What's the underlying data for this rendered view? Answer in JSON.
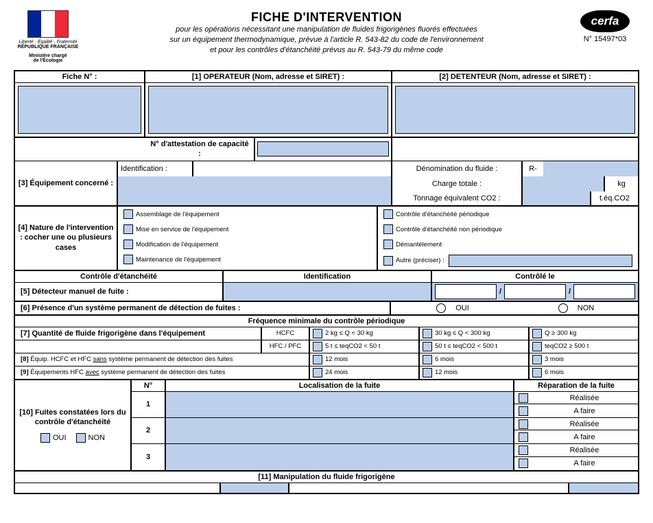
{
  "header": {
    "logo_line1": "Liberté · Égalité · Fraternité",
    "logo_line2": "RÉPUBLIQUE FRANÇAISE",
    "logo_line3": "Ministère chargé",
    "logo_line4": "de l'Écologie",
    "title": "FICHE D'INTERVENTION",
    "sub1": "pour les opérations nécessitant une manipulation de fluides frigorigènes fluorés effectuées",
    "sub2": "sur un équipement thermodynamique, prévue à l'article R. 543-82 du code de l'environnement",
    "sub3": "et pour les contrôles d'étanchéité prévus au R. 543-79 du même code",
    "cerfa": "cerfa",
    "cerfa_no": "N° 15497*03"
  },
  "s1": {
    "fiche_no": "Fiche N° :",
    "operateur": "[1] OPERATEUR (Nom, adresse et SIRET) :",
    "detenteur": "[2] DETENTEUR (Nom, adresse et SIRET) :",
    "attestation": "N° d'attestation de capacité :"
  },
  "s3": {
    "title": "[3] Équipement concerné :",
    "identification": "Identification :",
    "denom": "Dénomination du fluide :",
    "r": "R-",
    "charge": "Charge totale :",
    "kg": "kg",
    "tonnage": "Tonnage équivalent CO2 :",
    "teq": "t.éq.CO2"
  },
  "s4": {
    "title": "[4] Nature de l'intervention : cocher une ou plusieurs cases",
    "opts": [
      "Assemblage de l'équipement",
      "Mise en service de l'équipement",
      "Modification de l'équipement",
      "Maintenance de l'équipement",
      "Contrôle d'étanchéité périodique",
      "Contrôle d'étanchéité non périodique",
      "Démantèlement",
      "Autre (préciser) :"
    ]
  },
  "s5": {
    "h1": "Contrôle d'étanchéité",
    "h2": "Identification",
    "h3": "Contrôlé le",
    "label": "[5] Détecteur manuel de fuite :"
  },
  "s6": {
    "label": "[6] Présence d'un système permanent de détection de fuites :",
    "oui": "OUI",
    "non": "NON"
  },
  "s7": {
    "freq_title": "Fréquence minimale du contrôle périodique",
    "q_label": "[7] Quantité de fluide frigorigène dans l'équipement",
    "hcfc": "HCFC",
    "hfc": "HFC / PFC",
    "r1": [
      "2 kg ≤ Q < 30 kg",
      "30 kg ≤ Q < 300 kg",
      "Q ≥ 300 kg"
    ],
    "r2": [
      "5 t ≤ teqCO2 < 50 t",
      "50 t ≤ teqCO2 < 500 t",
      "teqCO2 ≥ 500 t"
    ],
    "l8": "[8] Équip. HCFC et HFC sans système permanent de détection des fuites",
    "l9": "[9] Équipements HFC avec système permanent de détection des fuites",
    "m12": "12 mois",
    "m6": "6 mois",
    "m3": "3 mois",
    "m24": "24 mois"
  },
  "s10": {
    "title": "[10] Fuites constatées lors du contrôle d'étanchéité",
    "oui": "OUI",
    "non": "NON",
    "no": "N°",
    "loc": "Localisation de la fuite",
    "rep": "Réparation de la fuite",
    "realisee": "Réalisée",
    "afaire": "A faire",
    "rows": [
      "1",
      "2",
      "3"
    ]
  },
  "s11": {
    "title": "[11] Manipulation du fluide frigorigène"
  }
}
